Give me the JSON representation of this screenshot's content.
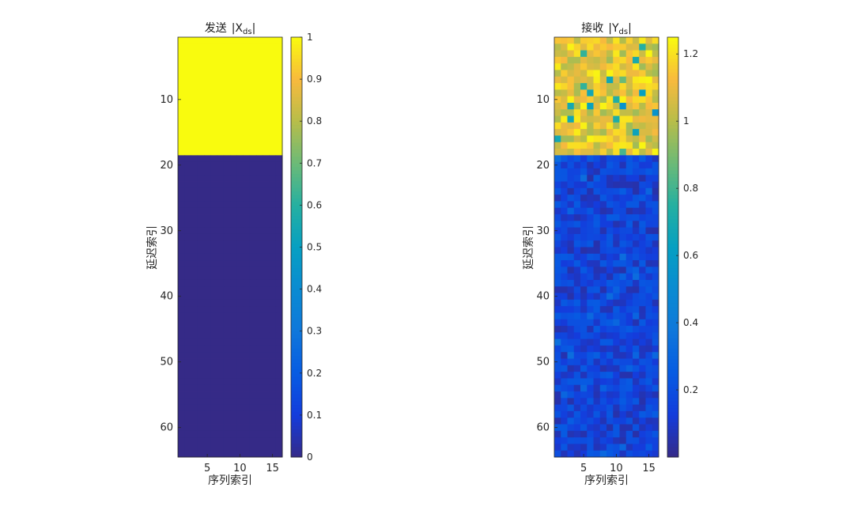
{
  "chart_data": [
    {
      "type": "heatmap",
      "title_prefix": "发送",
      "title_var": "X",
      "title_sub": "ds",
      "xlabel": "序列索引",
      "ylabel": "延迟索引",
      "n_cols": 16,
      "n_rows": 64,
      "x_ticks": [
        5,
        10,
        15
      ],
      "y_ticks": [
        10,
        20,
        30,
        40,
        50,
        60
      ],
      "colorbar_range": [
        0,
        1
      ],
      "colorbar_ticks": [
        0,
        0.1,
        0.2,
        0.3,
        0.4,
        0.5,
        0.6,
        0.7,
        0.8,
        0.9,
        1
      ],
      "colorbar_tick_labels": [
        "0",
        "0.1",
        "0.2",
        "0.3",
        "0.4",
        "0.5",
        "0.6",
        "0.7",
        "0.8",
        "0.9",
        "1"
      ],
      "data_description": "rows 1-18 all equal to 1, rows 19-64 all equal to 0",
      "value_rows_1_to_18": 1,
      "value_rows_19_to_64": 0,
      "colormap": "parula"
    },
    {
      "type": "heatmap",
      "title_prefix": "接收",
      "title_var": "Y",
      "title_sub": "ds",
      "xlabel": "序列索引",
      "ylabel": "延迟索引",
      "n_cols": 16,
      "n_rows": 64,
      "x_ticks": [
        5,
        10,
        15
      ],
      "y_ticks": [
        10,
        20,
        30,
        40,
        50,
        60
      ],
      "colorbar_range": [
        0,
        1.25
      ],
      "colorbar_ticks": [
        0.2,
        0.4,
        0.6,
        0.8,
        1,
        1.2
      ],
      "colorbar_tick_labels": [
        "0.2",
        "0.4",
        "0.6",
        "0.8",
        "1",
        "1.2"
      ],
      "data_description": "rows 1-18 noisy values around 1.1 (range ~0.7-1.25), rows 19-64 noisy values around 0.15 (range ~0.05-0.3)",
      "mean_rows_1_to_18": 1.1,
      "mean_rows_19_to_64": 0.15,
      "colormap": "parula"
    }
  ]
}
